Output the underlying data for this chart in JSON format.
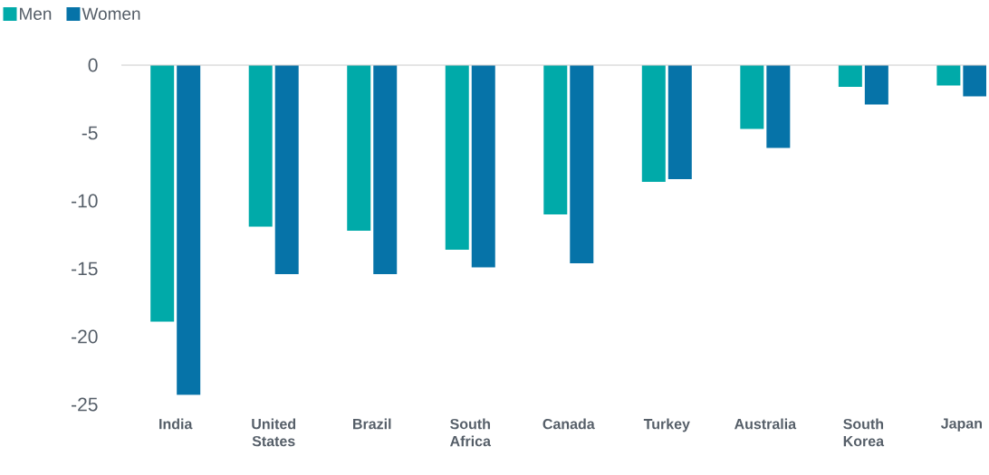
{
  "chart_data": {
    "type": "bar",
    "categories": [
      "India",
      "United States",
      "Brazil",
      "South Africa",
      "Canada",
      "Turkey",
      "Australia",
      "South Korea",
      "Japan"
    ],
    "series": [
      {
        "name": "Men",
        "color": "#00aaa9",
        "values": [
          -18.9,
          -11.9,
          -12.2,
          -13.6,
          -11.0,
          -8.6,
          -4.7,
          -1.6,
          -1.5
        ]
      },
      {
        "name": "Women",
        "color": "#0673a8",
        "values": [
          -24.3,
          -15.4,
          -15.4,
          -14.9,
          -14.6,
          -8.4,
          -6.1,
          -2.9,
          -2.3
        ]
      }
    ],
    "ylim": [
      -25,
      0
    ],
    "yticks": [
      0,
      -5,
      -10,
      -15,
      -20,
      -25
    ],
    "grid": false,
    "legend": "top left"
  }
}
